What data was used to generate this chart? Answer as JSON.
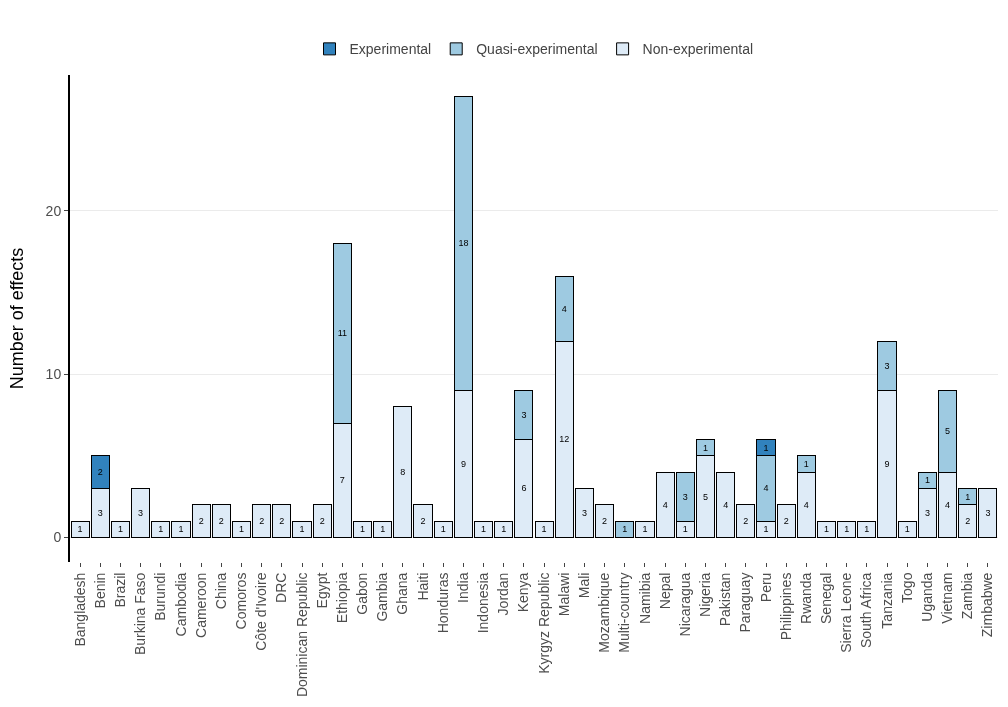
{
  "chart_data": {
    "type": "bar",
    "stacked": true,
    "ylabel": "Number of effects",
    "categories": [
      "Bangladesh",
      "Benin",
      "Brazil",
      "Burkina Faso",
      "Burundi",
      "Cambodia",
      "Cameroon",
      "China",
      "Comoros",
      "Côte d'Ivoire",
      "DRC",
      "Dominican Republic",
      "Egypt",
      "Ethiopia",
      "Gabon",
      "Gambia",
      "Ghana",
      "Haiti",
      "Honduras",
      "India",
      "Indonesia",
      "Jordan",
      "Kenya",
      "Kyrgyz Republic",
      "Malawi",
      "Mali",
      "Mozambique",
      "Multi-country",
      "Namibia",
      "Nepal",
      "Nicaragua",
      "Nigeria",
      "Pakistan",
      "Paraguay",
      "Peru",
      "Philippines",
      "Rwanda",
      "Senegal",
      "Sierra Leone",
      "South Africa",
      "Tanzania",
      "Togo",
      "Uganda",
      "Vietnam",
      "Zambia",
      "Zimbabwe"
    ],
    "series": [
      {
        "name": "Non-experimental",
        "color": "#deebf7",
        "values": [
          1,
          3,
          1,
          3,
          1,
          1,
          2,
          2,
          1,
          2,
          2,
          1,
          2,
          7,
          1,
          1,
          8,
          2,
          1,
          9,
          1,
          1,
          6,
          1,
          12,
          3,
          2,
          null,
          1,
          4,
          1,
          5,
          4,
          2,
          1,
          2,
          4,
          1,
          1,
          1,
          9,
          1,
          3,
          4,
          2,
          3
        ]
      },
      {
        "name": "Quasi-experimental",
        "color": "#9ecae1",
        "values": [
          null,
          null,
          null,
          null,
          null,
          null,
          null,
          null,
          null,
          null,
          null,
          null,
          null,
          11,
          null,
          null,
          null,
          null,
          null,
          18,
          null,
          null,
          3,
          null,
          4,
          null,
          null,
          1,
          null,
          null,
          3,
          1,
          null,
          null,
          4,
          null,
          1,
          null,
          null,
          null,
          3,
          null,
          1,
          5,
          1,
          null
        ]
      },
      {
        "name": "Experimental",
        "color": "#3182bd",
        "values": [
          null,
          2,
          null,
          null,
          null,
          null,
          null,
          null,
          null,
          null,
          null,
          null,
          null,
          null,
          null,
          null,
          null,
          null,
          null,
          null,
          null,
          null,
          null,
          null,
          null,
          null,
          null,
          null,
          null,
          null,
          null,
          null,
          null,
          null,
          1,
          null,
          null,
          null,
          null,
          null,
          null,
          null,
          null,
          null,
          null,
          null
        ]
      }
    ],
    "ylim": [
      -1.5,
      28.3
    ],
    "yticks": [
      0,
      10,
      20
    ],
    "grid": "y",
    "legend": "top",
    "data_labels": true
  }
}
